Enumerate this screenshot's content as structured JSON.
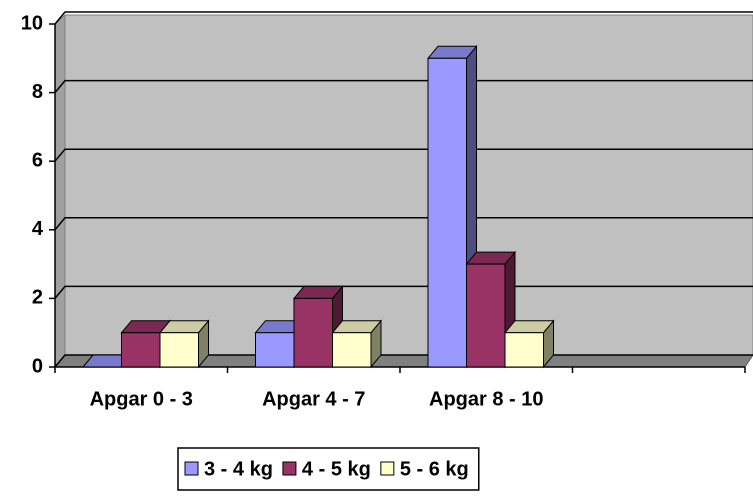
{
  "chart_data": {
    "type": "bar",
    "categories": [
      "Apgar 0 - 3",
      "Apgar 4 - 7",
      "Apgar 8 - 10",
      null
    ],
    "series": [
      {
        "name": "3 - 4 kg",
        "color": "#9999ff",
        "values": [
          0,
          1,
          9,
          null
        ]
      },
      {
        "name": "4 - 5 kg",
        "color": "#993366",
        "values": [
          1,
          2,
          3,
          null
        ]
      },
      {
        "name": "5 - 6 kg",
        "color": "#ffffcc",
        "values": [
          1,
          1,
          1,
          null
        ]
      }
    ],
    "ylim": [
      0,
      10
    ],
    "yticks": [
      0,
      2,
      4,
      6,
      8,
      10
    ],
    "grid": true,
    "legend": "bottom"
  }
}
